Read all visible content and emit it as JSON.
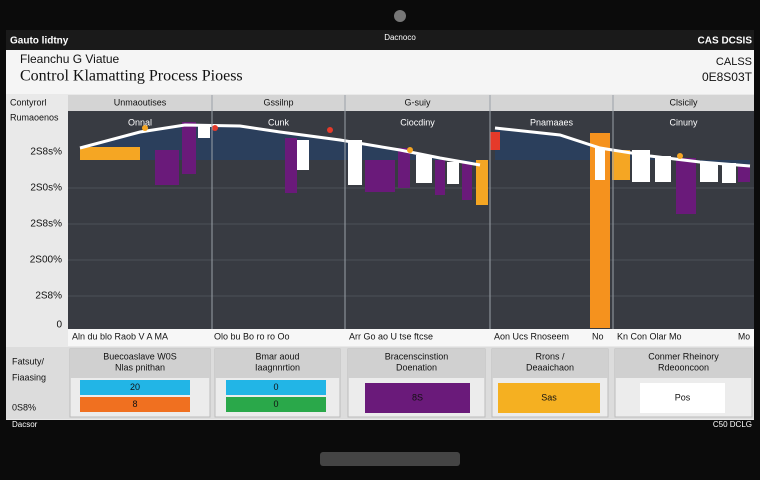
{
  "top_bar": {
    "left": "Gauto lidtny",
    "center": "Dacnoco",
    "right": "CAS DCSIS"
  },
  "header": {
    "subtitle": "Fleanchu G Viatue",
    "title": "Control Klamatting Process Pioess",
    "right_top": "CALSS",
    "right_bottom": "0E8S03T"
  },
  "chart": {
    "axis_title": [
      "Contyrorl",
      "Rumaoenos"
    ],
    "y_labels": [
      "2S8s%",
      "2S0s%",
      "2S8s%",
      "2S00%",
      "2S8%",
      "0"
    ],
    "columns": [
      {
        "header": "Unmaoutises",
        "label": "Onnal"
      },
      {
        "header": "Gssilnp",
        "label": "Cunk"
      },
      {
        "header": "G-suiy",
        "label": "Ciocdiny"
      },
      {
        "label": "Pnamaaes"
      },
      {
        "header": "Clsicily",
        "label": "Cinuny"
      }
    ],
    "x_labels": [
      "Aln du blo Raob V A MA",
      "Olo bu Bo ro ro Oo",
      "Arr Go ao U tse ftcse",
      "Aon Ucs Rnoseem",
      "No",
      "Kn Con Olar Mo",
      "Mo"
    ]
  },
  "cards": {
    "row_label": [
      "Fatsuty/",
      "Fiaasing"
    ],
    "row_value": "0S8%",
    "items": [
      {
        "title": [
          "Buecoaslave W0S",
          "Nlas pnithan"
        ],
        "values": [
          "20",
          "8"
        ],
        "colors": [
          "#22b5e6",
          "#f07020"
        ]
      },
      {
        "title": [
          "Bmar aoud",
          "Iaagnnrtion"
        ],
        "values": [
          "0",
          "0"
        ],
        "colors": [
          "#22b5e6",
          "#2aa84a"
        ]
      },
      {
        "title": [
          "Bracenscinstion",
          "Doenation"
        ],
        "values": [
          "8S"
        ],
        "colors": [
          "#6a1a7a"
        ]
      },
      {
        "title": [
          "Rrons /",
          "Deaaichaon"
        ],
        "values": [
          "Sas"
        ],
        "colors": [
          "#f5b021"
        ]
      },
      {
        "title": [
          "Conmer Rheinory",
          "Rdeooncoon"
        ],
        "values": [
          "Pos"
        ],
        "colors": [
          "#ffffff"
        ]
      }
    ]
  },
  "footer": {
    "left": "Dacsor",
    "right": "C50 DCLG"
  }
}
